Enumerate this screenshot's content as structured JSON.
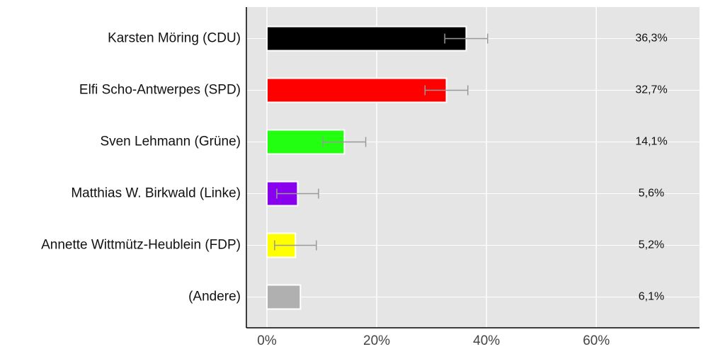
{
  "chart_data": {
    "type": "bar",
    "categories": [
      "Karsten Möring (CDU)",
      "Elfi Scho-Antwerpes (SPD)",
      "Sven Lehmann (Grüne)",
      "Matthias W. Birkwald (Linke)",
      "Annette Wittmütz-Heublein (FDP)",
      "(Andere)"
    ],
    "values": [
      36.3,
      32.7,
      14.1,
      5.6,
      5.2,
      6.1
    ],
    "value_labels": [
      "36,3%",
      "32,7%",
      "14,1%",
      "5,6%",
      "5,2%",
      "6,1%"
    ],
    "errors": [
      3.9,
      3.9,
      3.9,
      3.8,
      3.8,
      null
    ],
    "colors": [
      "#000000",
      "#ff0000",
      "#22ff11",
      "#8800ee",
      "#ffff00",
      "#b0b0b0"
    ],
    "error_color": "#999999",
    "xlim": [
      -3.74,
      78.8
    ],
    "xticks": [
      {
        "value": 0,
        "label": "0%"
      },
      {
        "value": 20,
        "label": "20%"
      },
      {
        "value": 40,
        "label": "40%"
      },
      {
        "value": 60,
        "label": "60%"
      }
    ],
    "grid": true
  }
}
